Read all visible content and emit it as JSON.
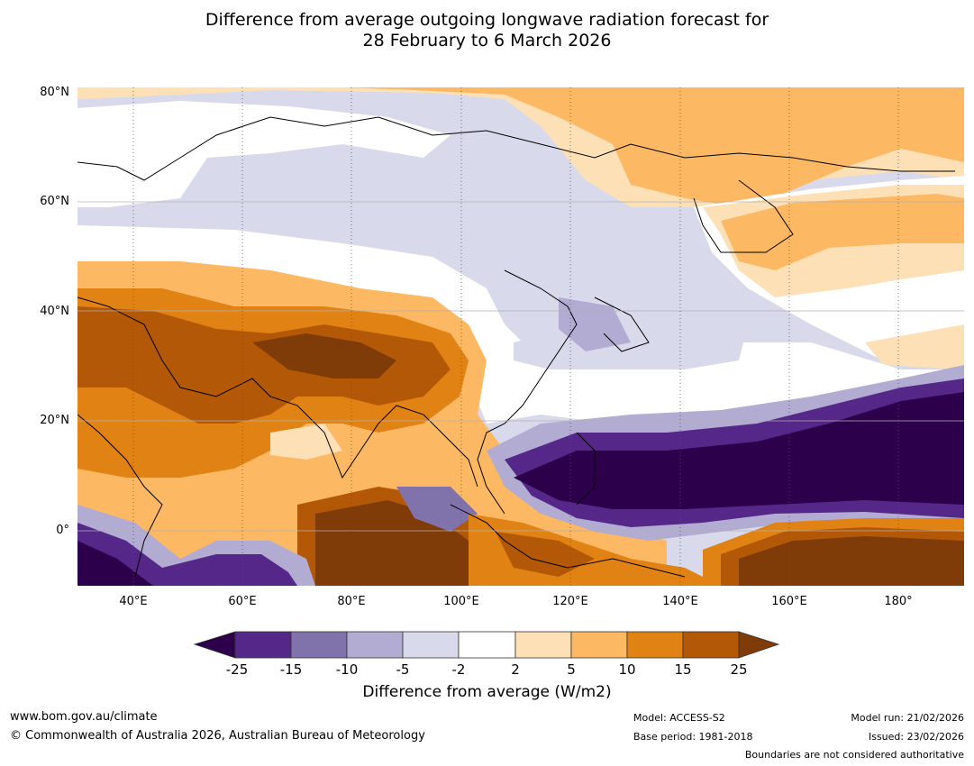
{
  "title": {
    "line1": "Difference from average outgoing longwave radiation forecast for",
    "line2": "28 February to 6 March 2026"
  },
  "axes": {
    "y_labels": [
      "80°N",
      "60°N",
      "40°N",
      "20°N",
      "0°"
    ],
    "x_labels": [
      "40°E",
      "60°E",
      "80°E",
      "100°E",
      "120°E",
      "140°E",
      "160°E",
      "180°"
    ]
  },
  "colorbar": {
    "title": "Difference from average (W/m2)",
    "ticks": [
      "-25",
      "-15",
      "-10",
      "-5",
      "-2",
      "2",
      "5",
      "10",
      "15",
      "25"
    ],
    "colors": {
      "below_min": "#2d004b",
      "c1": "#542788",
      "c2": "#8073ac",
      "c3": "#b2abd2",
      "c4": "#d8daeb",
      "c5": "#ffffff",
      "c6": "#fee0b6",
      "c7": "#fdb863",
      "c8": "#e08214",
      "c9": "#b35806",
      "above_max": "#7f3b08"
    }
  },
  "footer": {
    "website": "www.bom.gov.au/climate",
    "copyright": "© Commonwealth of Australia 2026, Australian Bureau of Meteorology",
    "model": "Model: ACCESS-S2",
    "base_period": "Base period: 1981-2018",
    "model_run": "Model run: 21/02/2026",
    "issued": "Issued: 23/02/2026",
    "disclaimer": "Boundaries are not considered authoritative"
  }
}
